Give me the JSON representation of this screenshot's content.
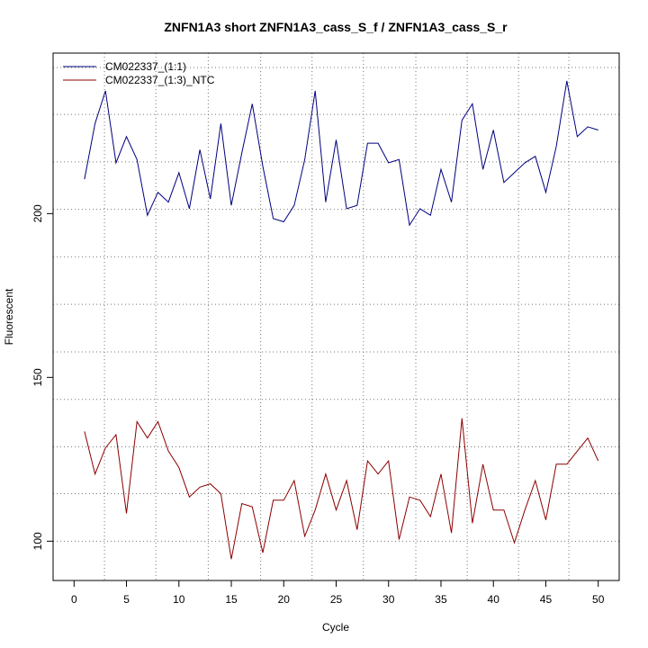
{
  "chart_data": {
    "type": "line",
    "title": "ZNFN1A3 short ZNFN1A3_cass_S_f / ZNFN1A3_cass_S_r",
    "xlabel": "Cycle",
    "ylabel": "Fluorescent",
    "xlim": [
      -2,
      52
    ],
    "ylim": [
      88,
      249
    ],
    "x_ticks": [
      0,
      5,
      10,
      15,
      20,
      25,
      30,
      35,
      40,
      45,
      50
    ],
    "y_ticks": [
      100,
      150,
      200
    ],
    "grid": true,
    "vgrid": [
      2.9,
      7.8,
      12.8,
      17.8,
      22.7,
      27.6,
      32.6,
      37.5,
      42.4,
      47.2
    ],
    "hgrid": [
      100,
      114.5,
      128.8,
      143.3,
      157.8,
      172.3,
      186.8,
      201.3,
      215.8,
      230.3,
      244.6
    ],
    "legend_position": "top-left",
    "x": [
      1,
      2,
      3,
      4,
      5,
      6,
      7,
      8,
      9,
      10,
      11,
      12,
      13,
      14,
      15,
      16,
      17,
      18,
      19,
      20,
      21,
      22,
      23,
      24,
      25,
      26,
      27,
      28,
      29,
      30,
      31,
      32,
      33,
      34,
      35,
      36,
      37,
      38,
      39,
      40,
      41,
      42,
      43,
      44,
      45,
      46,
      47,
      48,
      49,
      50
    ],
    "series": [
      {
        "name": "CM022337_(1:1)",
        "color": "#00007f",
        "values": [
          210.5,
          227.5,
          237.5,
          215.5,
          223.5,
          216.5,
          199.5,
          206.5,
          203.5,
          212.5,
          201.5,
          219.5,
          204.5,
          227.5,
          202.5,
          218.5,
          233.5,
          214.5,
          198.5,
          197.5,
          202.5,
          216.5,
          237.5,
          203.5,
          222.5,
          201.5,
          202.5,
          221.5,
          221.5,
          215.5,
          216.5,
          196.5,
          201.5,
          199.5,
          213.5,
          203.5,
          228.5,
          233.5,
          213.5,
          225.5,
          209.5,
          212.5,
          215.5,
          217.5,
          206.5,
          220.5,
          240.5,
          223.5,
          226.5,
          225.5
        ]
      },
      {
        "name": "CM022337_(1:3)_NTC",
        "color": "#8b0000",
        "values": [
          133.5,
          120.5,
          128.5,
          132.5,
          108.5,
          136.5,
          131.5,
          136.5,
          127.5,
          122.5,
          113.5,
          116.5,
          117.5,
          114.5,
          94.5,
          111.5,
          110.5,
          96.5,
          112.5,
          112.5,
          118.5,
          101.5,
          109.5,
          120.5,
          109.5,
          118.5,
          103.5,
          124.5,
          120.5,
          124.5,
          100.5,
          113.5,
          112.5,
          107.5,
          120.5,
          102.5,
          137.5,
          105.5,
          123.5,
          109.5,
          109.5,
          99.5,
          109.5,
          118.5,
          106.5,
          123.5,
          123.5,
          null,
          131.5,
          124.5
        ]
      }
    ]
  }
}
